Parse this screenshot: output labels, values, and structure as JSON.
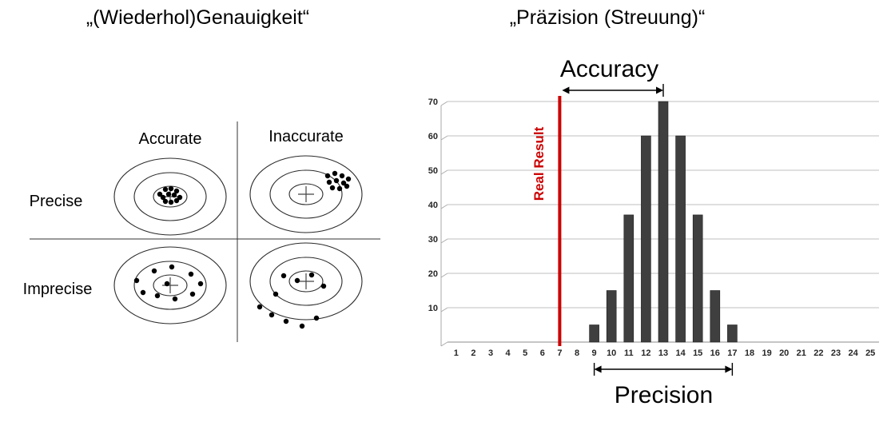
{
  "left_panel": {
    "title": "„(Wiederhol)Genauigkeit“",
    "columns": [
      "Accurate",
      "Inaccurate"
    ],
    "rows": [
      "Precise",
      "Imprecise"
    ],
    "targets": [
      {
        "id": "precise-accurate",
        "dots": [
          [
            -13,
            -3
          ],
          [
            -6,
            -9
          ],
          [
            1,
            -10
          ],
          [
            8,
            -7
          ],
          [
            -9,
            1
          ],
          [
            -2,
            -3
          ],
          [
            5,
            -2
          ],
          [
            12,
            1
          ],
          [
            -6,
            6
          ],
          [
            1,
            7
          ],
          [
            8,
            5
          ]
        ]
      },
      {
        "id": "precise-inaccurate",
        "dots": [
          [
            27,
            -23
          ],
          [
            36,
            -26
          ],
          [
            45,
            -23
          ],
          [
            53,
            -19
          ],
          [
            29,
            -15
          ],
          [
            38,
            -17
          ],
          [
            47,
            -14
          ],
          [
            33,
            -8
          ],
          [
            42,
            -7
          ],
          [
            51,
            -10
          ]
        ]
      },
      {
        "id": "imprecise-accurate",
        "dots": [
          [
            -42,
            -6
          ],
          [
            -20,
            -18
          ],
          [
            2,
            -23
          ],
          [
            26,
            -14
          ],
          [
            38,
            -2
          ],
          [
            28,
            11
          ],
          [
            6,
            17
          ],
          [
            -16,
            13
          ],
          [
            -34,
            9
          ],
          [
            -4,
            -2
          ]
        ]
      },
      {
        "id": "imprecise-inaccurate",
        "dots": [
          [
            -28,
            -7
          ],
          [
            -11,
            -1
          ],
          [
            7,
            -8
          ],
          [
            22,
            6
          ],
          [
            -38,
            16
          ],
          [
            -58,
            32
          ],
          [
            -43,
            42
          ],
          [
            -25,
            50
          ],
          [
            -5,
            56
          ],
          [
            13,
            46
          ]
        ]
      }
    ]
  },
  "right_panel": {
    "title": "„Präzision (Streuung)“",
    "accuracy_label": "Accuracy",
    "real_result_label": "Real Result",
    "precision_label": "Precision",
    "colors": {
      "bar": "#3f3f3f",
      "bar_edge": "#1f1f1f",
      "real_result_line": "#cc0000",
      "grid": "#bfbfbf",
      "axis_line": "#8c8c8c",
      "axis_text": "#262626"
    }
  },
  "chart_data": {
    "type": "bar",
    "title": "Accuracy",
    "xlabel": "",
    "ylabel": "",
    "categories": [
      1,
      2,
      3,
      4,
      5,
      6,
      7,
      8,
      9,
      10,
      11,
      12,
      13,
      14,
      15,
      16,
      17,
      18,
      19,
      20,
      21,
      22,
      23,
      24,
      25
    ],
    "values": [
      0,
      0,
      0,
      0,
      0,
      0,
      0,
      0,
      5,
      15,
      37,
      60,
      70,
      60,
      37,
      15,
      5,
      0,
      0,
      0,
      0,
      0,
      0,
      0,
      0
    ],
    "y_ticks": [
      10,
      20,
      30,
      40,
      50,
      60,
      70
    ],
    "ylim": [
      0,
      70
    ],
    "grid": true,
    "legend": false,
    "annotations": {
      "real_result_x": 7,
      "accuracy_arrow": {
        "from_x": 7,
        "to_x": 13
      },
      "precision_arrow": {
        "from_x": 9,
        "to_x": 17
      }
    }
  }
}
